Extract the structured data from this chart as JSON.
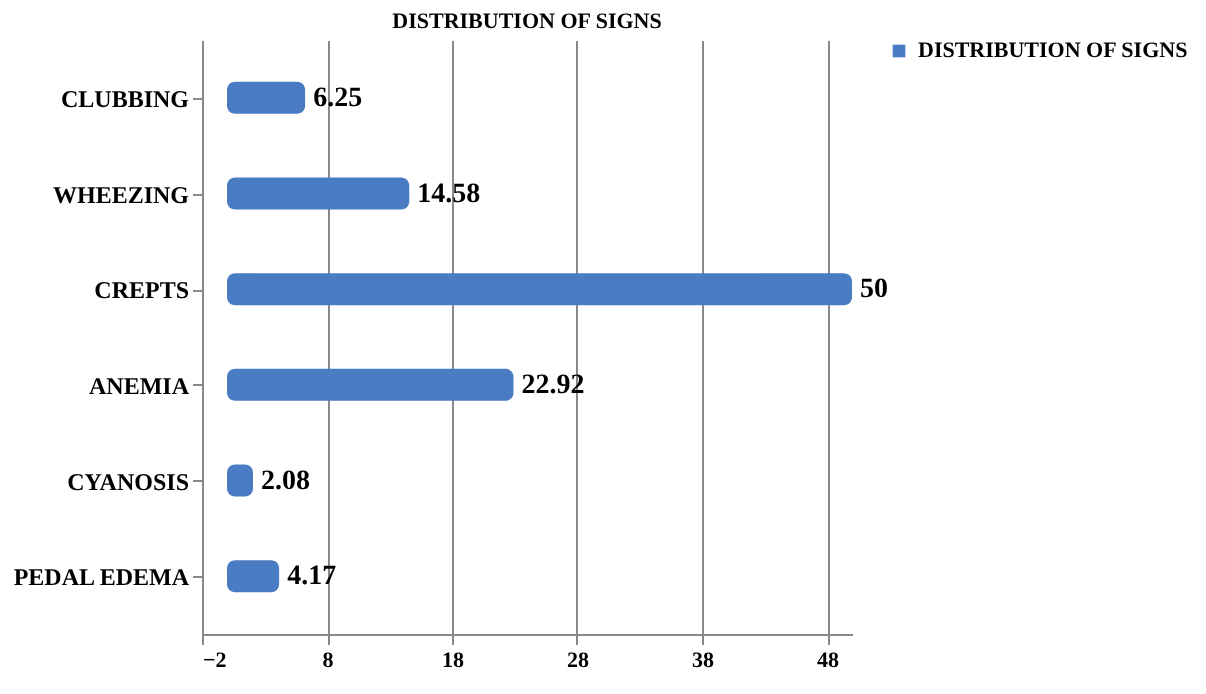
{
  "chart_data": {
    "type": "bar",
    "orientation": "horizontal",
    "title": "DISTRIBUTION OF SIGNS",
    "categories": [
      "CLUBBING",
      "WHEEZING",
      "CREPTS",
      "ANEMIA",
      "CYANOSIS",
      "PEDAL EDEMA"
    ],
    "series": [
      {
        "name": "DISTRIBUTION OF SIGNS",
        "color": "#4a7cc4",
        "values": [
          6.25,
          14.58,
          50,
          22.92,
          2.08,
          4.17
        ]
      }
    ],
    "xlim": [
      -2,
      50
    ],
    "xticks": [
      -2,
      8,
      18,
      28,
      38,
      48
    ],
    "grid": "x",
    "legend": "right",
    "data_labels": true
  }
}
